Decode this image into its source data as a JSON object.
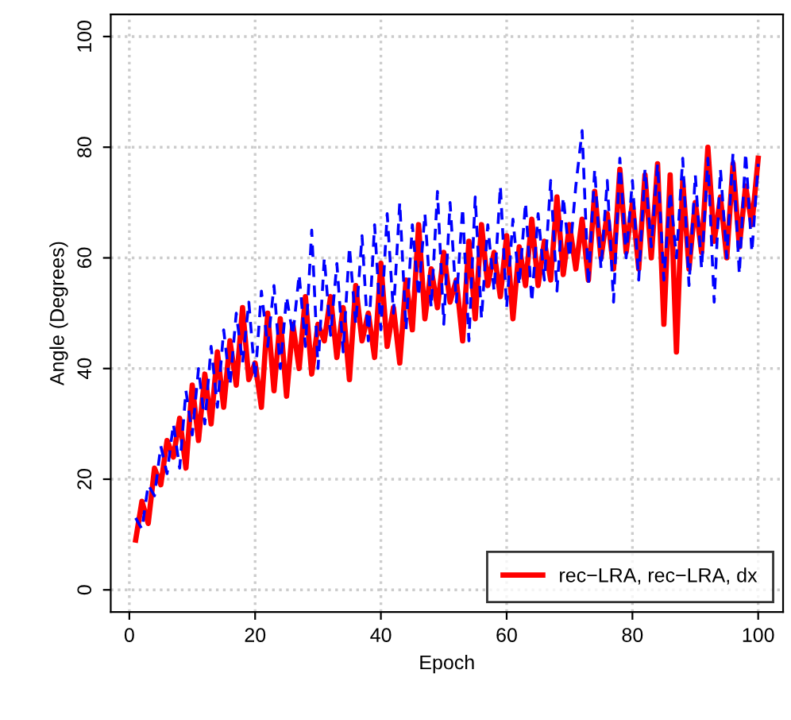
{
  "chart_data": {
    "type": "line",
    "xlabel": "Epoch",
    "ylabel": "Angle (Degrees)",
    "xlim": [
      -2.96,
      103.96
    ],
    "ylim": [
      -4,
      104
    ],
    "xticks": [
      0,
      20,
      40,
      60,
      80,
      100
    ],
    "yticks": [
      0,
      20,
      40,
      60,
      80,
      100
    ],
    "grid": true,
    "legend": "bottom right",
    "marker": "none",
    "x": [
      1,
      2,
      3,
      4,
      5,
      6,
      7,
      8,
      9,
      10,
      11,
      12,
      13,
      14,
      15,
      16,
      17,
      18,
      19,
      20,
      21,
      22,
      23,
      24,
      25,
      26,
      27,
      28,
      29,
      30,
      31,
      32,
      33,
      34,
      35,
      36,
      37,
      38,
      39,
      40,
      41,
      42,
      43,
      44,
      45,
      46,
      47,
      48,
      49,
      50,
      51,
      52,
      53,
      54,
      55,
      56,
      57,
      58,
      59,
      60,
      61,
      62,
      63,
      64,
      65,
      66,
      67,
      68,
      69,
      70,
      71,
      72,
      73,
      74,
      75,
      76,
      77,
      78,
      79,
      80,
      81,
      82,
      83,
      84,
      85,
      86,
      87,
      88,
      89,
      90,
      91,
      92,
      93,
      94,
      95,
      96,
      97,
      98,
      99,
      100
    ],
    "series": [
      {
        "name": "rec−LRA, rec−LRA, dx",
        "color": "#ff0000",
        "line_style": "solid",
        "values": [
          9,
          16,
          12,
          22,
          19,
          27,
          24,
          31,
          22,
          37,
          27,
          39,
          30,
          43,
          33,
          45,
          37,
          51,
          38,
          41,
          33,
          50,
          36,
          49,
          35,
          48,
          40,
          53,
          39,
          48,
          45,
          53,
          42,
          51,
          38,
          55,
          45,
          50,
          42,
          59,
          44,
          51,
          41,
          56,
          47,
          66,
          49,
          58,
          51,
          61,
          52,
          56,
          45,
          63,
          49,
          66,
          55,
          61,
          53,
          64,
          49,
          62,
          55,
          67,
          55,
          63,
          56,
          71,
          57,
          66,
          58,
          67,
          56,
          72,
          60,
          68,
          58,
          76,
          61,
          70,
          58,
          75,
          60,
          77,
          48,
          75,
          43,
          74,
          58,
          70,
          61,
          80,
          63,
          71,
          60,
          77,
          62,
          73,
          66,
          78
        ]
      },
      {
        "color": "#0000ff",
        "line_style": "dashed",
        "values": [
          13,
          11,
          19,
          17,
          26,
          21,
          30,
          22,
          36,
          28,
          40,
          30,
          44,
          33,
          47,
          37,
          50,
          41,
          52,
          38,
          54,
          44,
          55,
          40,
          53,
          46,
          57,
          44,
          65,
          40,
          60,
          46,
          59,
          43,
          62,
          48,
          64,
          45,
          66,
          47,
          68,
          50,
          70,
          47,
          66,
          53,
          68,
          51,
          72,
          48,
          70,
          52,
          69,
          45,
          71,
          49,
          66,
          54,
          73,
          51,
          67,
          55,
          70,
          52,
          68,
          56,
          74,
          54,
          71,
          60,
          73,
          83,
          55,
          76,
          58,
          74,
          52,
          78,
          60,
          74,
          56,
          76,
          62,
          77,
          56,
          72,
          60,
          78,
          55,
          75,
          58,
          78,
          52,
          76,
          60,
          79,
          57,
          79,
          61,
          77
        ]
      }
    ]
  }
}
